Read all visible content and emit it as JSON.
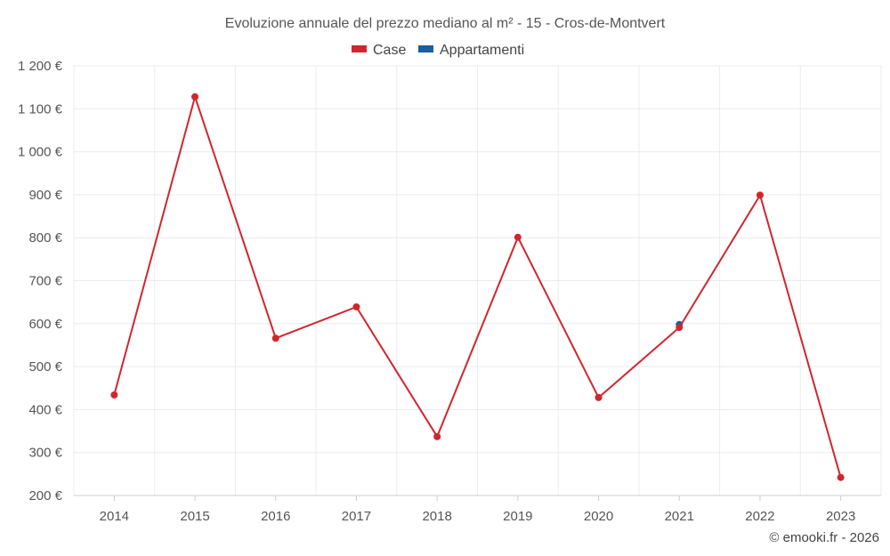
{
  "chart_data": {
    "type": "line",
    "title": "Evoluzione annuale del prezzo mediano al m² - 15 - Cros-de-Montvert",
    "categories": [
      "2014",
      "2015",
      "2016",
      "2017",
      "2018",
      "2019",
      "2020",
      "2021",
      "2022",
      "2023"
    ],
    "series": [
      {
        "name": "Case",
        "color": "#d0262d",
        "values": [
          434,
          1128,
          566,
          639,
          337,
          801,
          428,
          591,
          899,
          242
        ]
      },
      {
        "name": "Appartamenti",
        "color": "#1a5f9e",
        "values": [
          null,
          null,
          null,
          null,
          null,
          null,
          null,
          598,
          null,
          null
        ]
      }
    ],
    "y_ticks": [
      "1 200 €",
      "1 100 €",
      "1 000 €",
      "900 €",
      "800 €",
      "700 €",
      "600 €",
      "500 €",
      "400 €",
      "300 €",
      "200 €"
    ],
    "ylim": [
      200,
      1200
    ],
    "xlabel": "",
    "ylabel": "",
    "legend_position": "top-center",
    "grid": true
  },
  "credit": "© emooki.fr - 2026"
}
